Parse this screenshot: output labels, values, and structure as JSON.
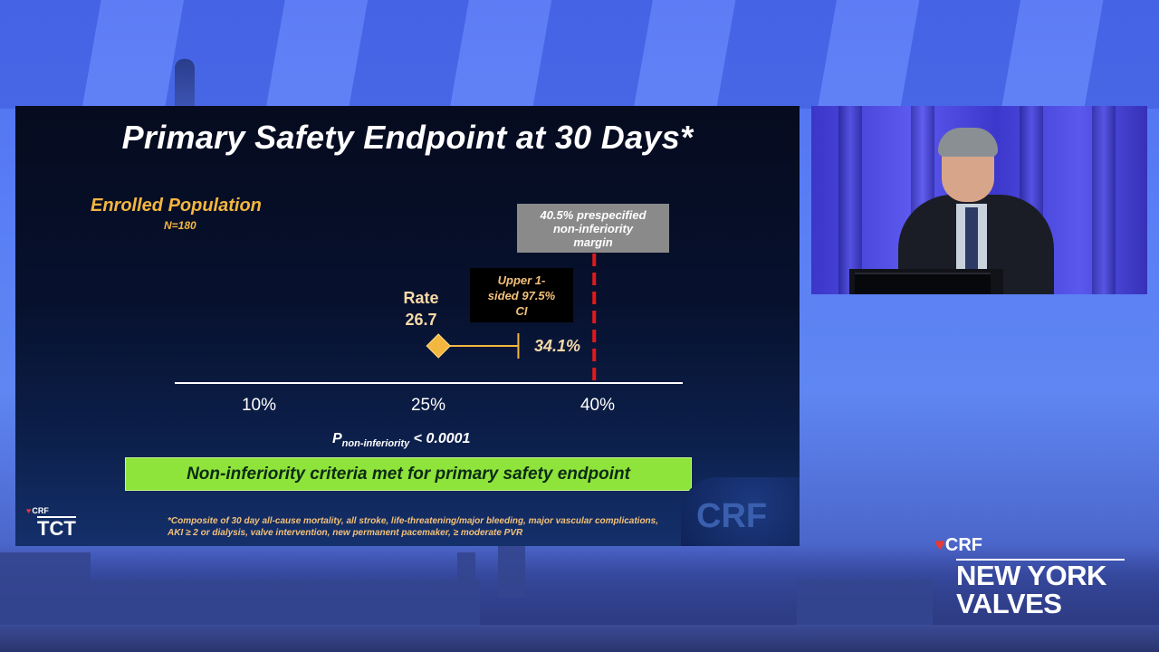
{
  "slide": {
    "title": "Primary Safety Endpoint at 30 Days*",
    "population_label": "Enrolled Population",
    "population_n": "N=180",
    "margin_box": "40.5% prespecified\nnon-inferiority\nmargin",
    "ci_box": "Upper 1-\nsided 97.5%\nCI",
    "rate_label": "Rate",
    "rate_value": "26.7",
    "upper_value": "34.1%",
    "p_prefix": "P",
    "p_subscript": "non-inferiority",
    "p_suffix": " < 0.0001",
    "criteria": "Non-inferiority criteria met for primary safety endpoint",
    "footnote": "*Composite of 30 day all-cause mortality, all stroke, life-threatening/major bleeding, major vascular complications, AKI ≥ 2 or dialysis, valve intervention, new permanent pacemaker, ≥ moderate PVR",
    "logo_crf": "CRF",
    "logo_tct": "TCT",
    "watermark": "CRF"
  },
  "chart_data": {
    "type": "scatter",
    "x_ticks": [
      "10%",
      "25%",
      "40%"
    ],
    "xlim": [
      10,
      40
    ],
    "point_estimate": 26.7,
    "upper_ci": 34.1,
    "noninferiority_margin": 40.5,
    "colors": {
      "marker": "#f3b63f",
      "ci_line": "#f3b63f",
      "margin_line": "#e01a1a",
      "axis": "#ffffff"
    }
  },
  "brand": {
    "crf": "CRF",
    "line1": "NEW YORK",
    "line2": "VALVES"
  },
  "colors": {
    "criteria_bar": "#8ee43a",
    "accent_gold": "#f3b63f",
    "crf_heart": "#e33a3a"
  }
}
